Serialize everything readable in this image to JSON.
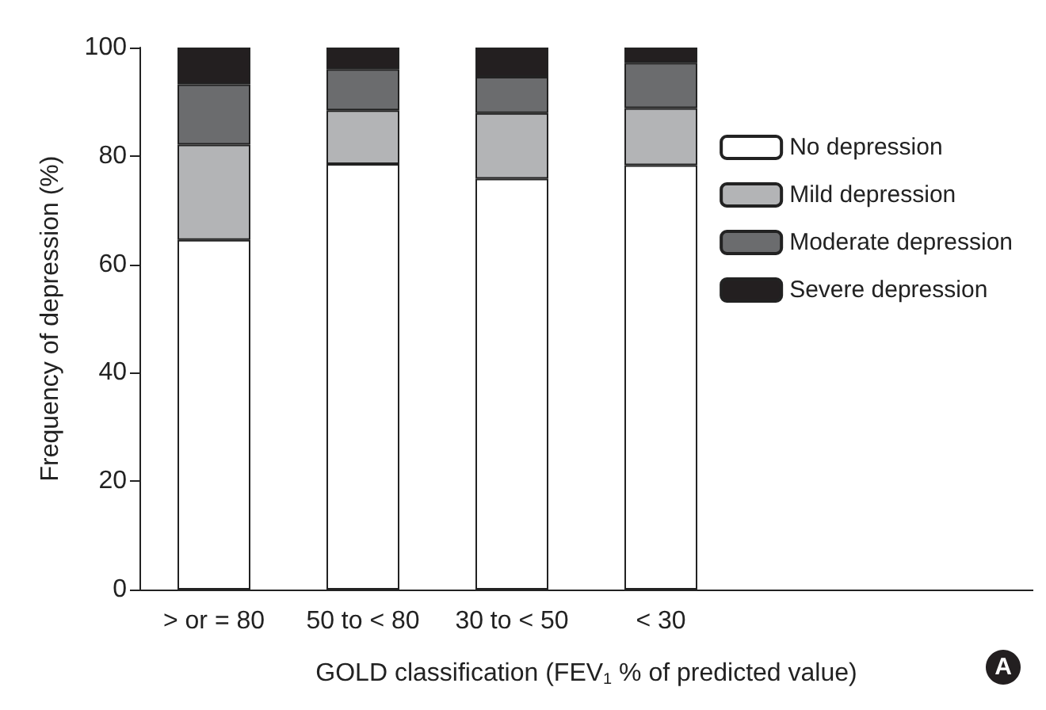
{
  "chart_data": {
    "type": "bar",
    "stacked": true,
    "xlabel": "GOLD classification (FEV$_{1}$ % of predicted value)",
    "ylabel": "Frequency of depression (%)",
    "categories": [
      "> or = 80",
      "50 to < 80",
      "30 to < 50",
      "< 30",
      null,
      null
    ],
    "series": [
      {
        "name": "No depression",
        "color": "#ffffff",
        "values": [
          64.5,
          78.5,
          75.8,
          78.3,
          null,
          null
        ]
      },
      {
        "name": "Mild depression",
        "color": "#b3b4b6",
        "values": [
          17.6,
          9.9,
          12.1,
          10.5,
          null,
          null
        ]
      },
      {
        "name": "Moderate depression",
        "color": "#6b6c6e",
        "values": [
          11.1,
          7.6,
          6.7,
          8.4,
          null,
          null
        ]
      },
      {
        "name": "Severe depression",
        "color": "#231f20",
        "values": [
          6.8,
          4.0,
          5.4,
          2.8,
          null,
          null
        ]
      }
    ],
    "ylim": [
      0,
      100
    ],
    "yticks": [
      0,
      20,
      40,
      60,
      80,
      100
    ],
    "grid": false,
    "legend": "right",
    "annotations": [
      "A"
    ]
  }
}
